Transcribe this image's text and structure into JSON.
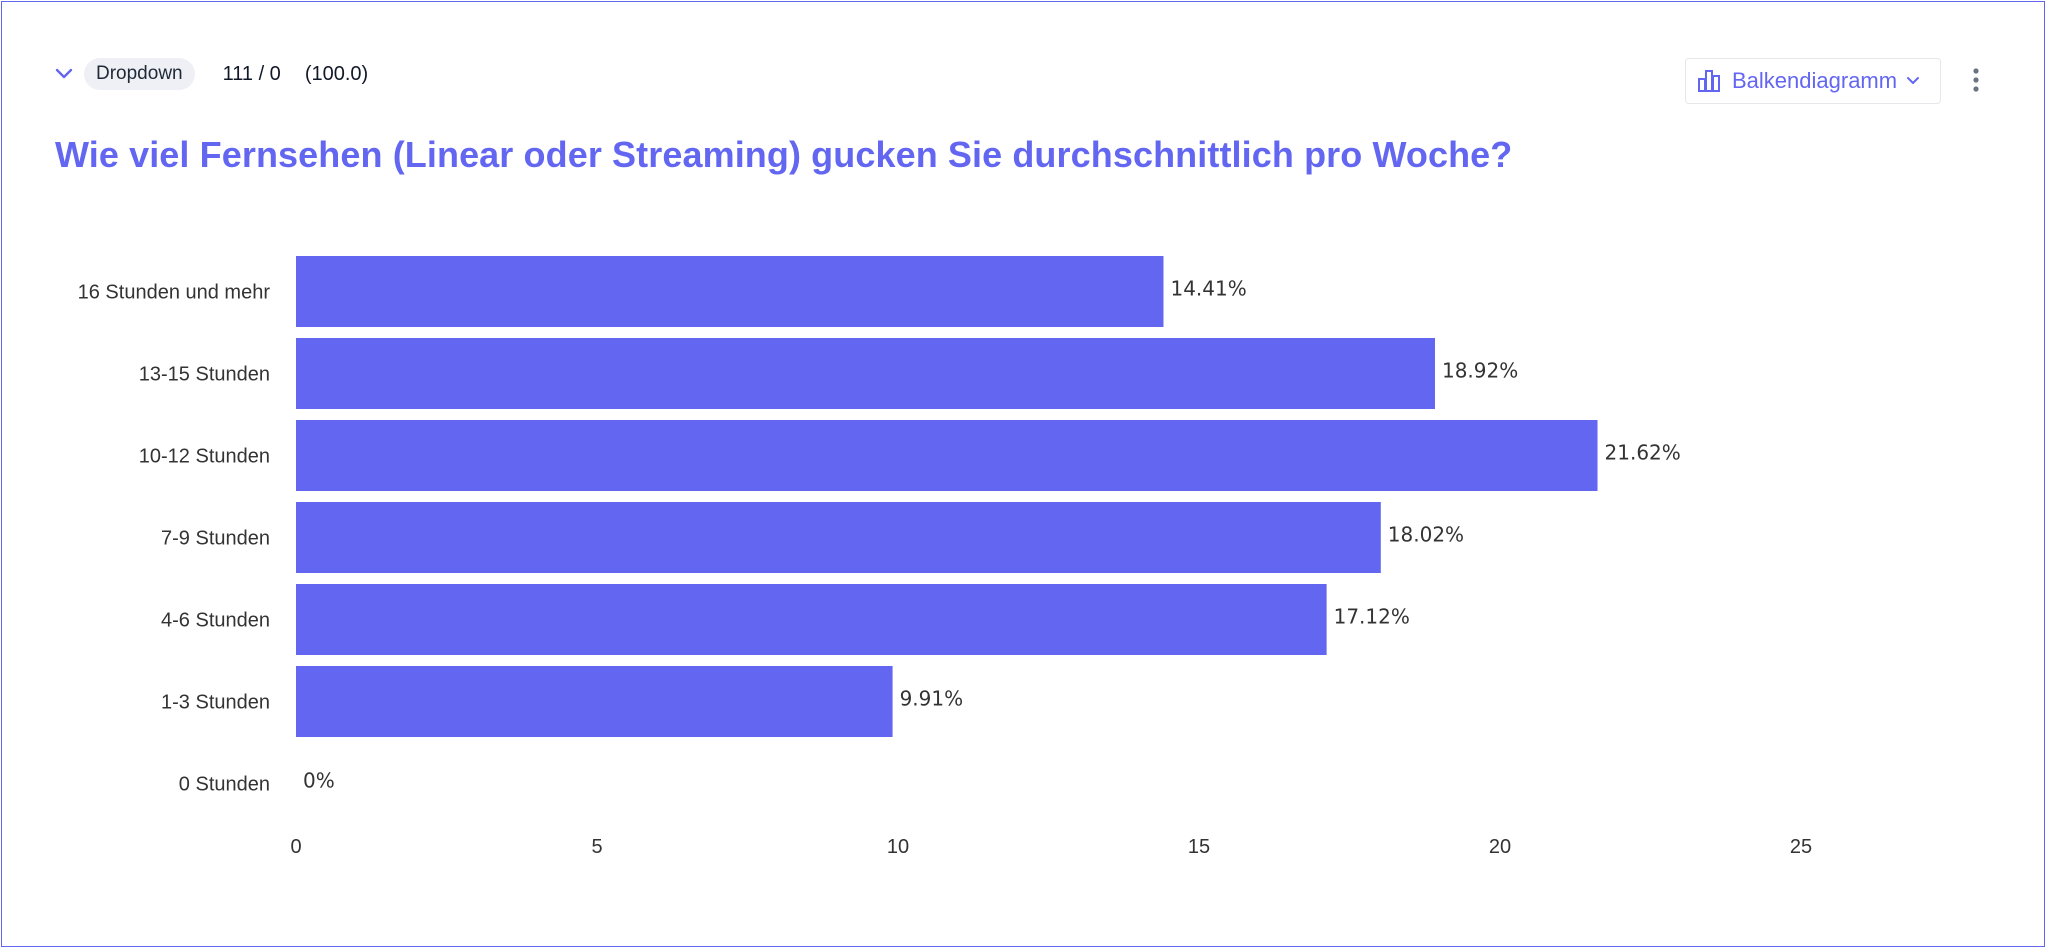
{
  "header": {
    "question_type": "Dropdown",
    "counts": "111 / 0",
    "percent": "(100.0)",
    "chart_type_label": "Balkendiagramm"
  },
  "icons": {
    "collapse": "chevron-down-icon",
    "chart_type": "bar-chart-icon",
    "dropdown": "chevron-down-icon",
    "more": "more-vertical-icon"
  },
  "colors": {
    "accent": "#6366f1",
    "bar": "#6366f1"
  },
  "chart_data": {
    "type": "bar",
    "orientation": "horizontal",
    "title": "Wie viel Fernsehen (Linear oder Streaming) gucken Sie durchschnittlich pro Woche?",
    "categories": [
      "16 Stunden und mehr",
      "13-15 Stunden",
      "10-12 Stunden",
      "7-9 Stunden",
      "4-6 Stunden",
      "1-3 Stunden",
      "0 Stunden"
    ],
    "values": [
      14.41,
      18.92,
      21.62,
      18.02,
      17.12,
      9.91,
      0
    ],
    "value_labels": [
      "14.41%",
      "18.92%",
      "21.62%",
      "18.02%",
      "17.12%",
      "9.91%",
      "0%"
    ],
    "xlim": [
      0,
      25
    ],
    "xticks": [
      "0",
      "5",
      "10",
      "15",
      "20",
      "25"
    ],
    "grid": false,
    "legend": "none"
  }
}
